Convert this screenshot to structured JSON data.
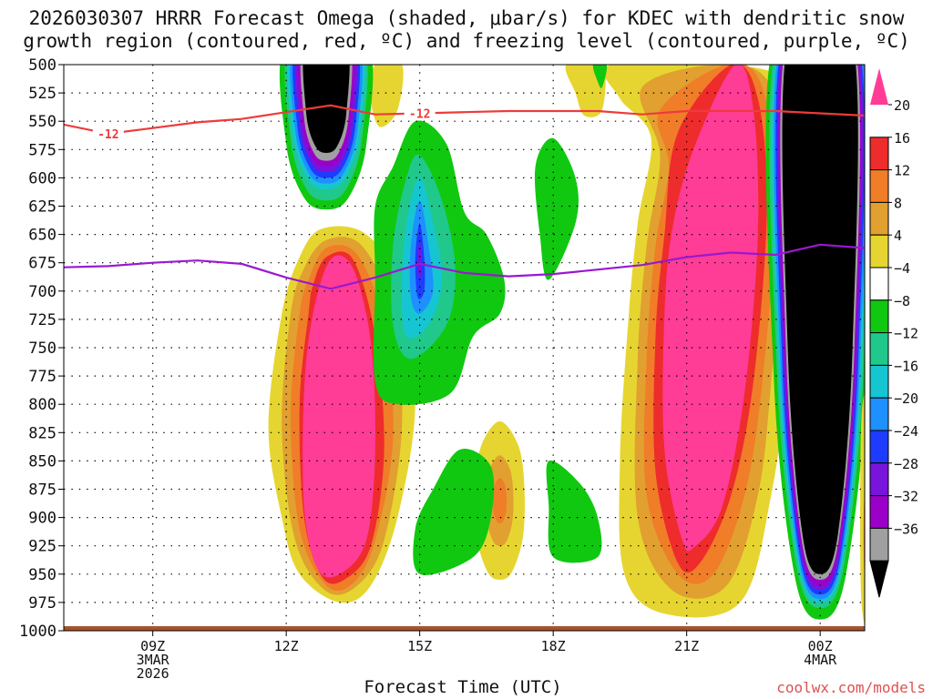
{
  "chart_data": {
    "type": "time-height cross section (filled contour)",
    "title_line1": "2026030307 HRRR Forecast Omega (shaded, μbar/s) for KDEC with dendritic snow",
    "title_line2": "growth region (contoured, red, ºC) and freezing level (contoured, purple, ºC)",
    "xlabel": "Forecast Time (UTC)",
    "credit": "coolwx.com/models",
    "x_range_hours": [
      7,
      25
    ],
    "x_ticks": [
      {
        "hour": 9,
        "lines": [
          "09Z",
          "3MAR",
          "2026"
        ]
      },
      {
        "hour": 12,
        "lines": [
          "12Z"
        ]
      },
      {
        "hour": 15,
        "lines": [
          "15Z"
        ]
      },
      {
        "hour": 18,
        "lines": [
          "18Z"
        ]
      },
      {
        "hour": 21,
        "lines": [
          "21Z"
        ]
      },
      {
        "hour": 24,
        "lines": [
          "00Z",
          "4MAR"
        ]
      }
    ],
    "y_range_hpa": [
      500,
      1000
    ],
    "y_ticks": [
      500,
      525,
      550,
      575,
      600,
      625,
      650,
      675,
      700,
      725,
      750,
      775,
      800,
      825,
      850,
      875,
      900,
      925,
      950,
      975,
      1000
    ],
    "colorbar": {
      "labels": [
        "20",
        "16",
        "12",
        "8",
        "4",
        "−4",
        "−8",
        "−12",
        "−16",
        "−20",
        "−24",
        "−28",
        "−32",
        "−36"
      ],
      "colors": [
        "#ff3c96",
        "#ee2c2c",
        "#f07d28",
        "#e1a030",
        "#e6d530",
        "#ffffff",
        "#10c810",
        "#20c88c",
        "#15c6d2",
        "#1e90ff",
        "#1e3cff",
        "#7814dc",
        "#9b00c8",
        "#a0a0a0",
        "#000000"
      ]
    },
    "omega_features": [
      {
        "name": "strong ascent core 12-13Z upper",
        "hour": 13.0,
        "top_hpa": 500,
        "bottom_hpa": 628,
        "min_value": -40
      },
      {
        "name": "moderate ascent 14-17Z",
        "hour": 15.0,
        "top_hpa": 548,
        "bottom_hpa": 790,
        "min_value": -24
      },
      {
        "name": "descent core 12-14Z lower",
        "hour": 13.0,
        "top_hpa": 645,
        "bottom_hpa": 975,
        "max_value": 24
      },
      {
        "name": "descent core 16-17Z",
        "hour": 16.8,
        "top_hpa": 815,
        "bottom_hpa": 952,
        "max_value": 10
      },
      {
        "name": "descent core 20-23Z",
        "hour": 21.8,
        "top_hpa": 500,
        "bottom_hpa": 985,
        "max_value": 24
      },
      {
        "name": "strong ascent 00Z",
        "hour": 24.0,
        "top_hpa": 500,
        "bottom_hpa": 985,
        "min_value": -40
      }
    ],
    "dgz_line": {
      "label": "-12",
      "color": "#ee3b3b",
      "hours": [
        7,
        8,
        9,
        10,
        11,
        12,
        13,
        14,
        15,
        16,
        17,
        18,
        19,
        20,
        21,
        22,
        23,
        24,
        25
      ],
      "pressure_hpa": [
        553,
        561,
        556,
        551,
        548,
        542,
        536,
        544,
        543,
        542,
        541,
        541,
        541,
        544,
        541,
        541,
        541,
        543,
        545
      ]
    },
    "freezing_line": {
      "color": "#9a18d0",
      "hours": [
        7,
        8,
        9,
        10,
        11,
        12,
        13,
        14,
        15,
        16,
        17,
        18,
        19,
        20,
        21,
        22,
        23,
        24,
        25
      ],
      "pressure_hpa": [
        679,
        678,
        675,
        673,
        676,
        688,
        698,
        688,
        676,
        684,
        687,
        685,
        681,
        677,
        670,
        666,
        668,
        659,
        662
      ]
    },
    "terrain_color": "#a8522d"
  }
}
